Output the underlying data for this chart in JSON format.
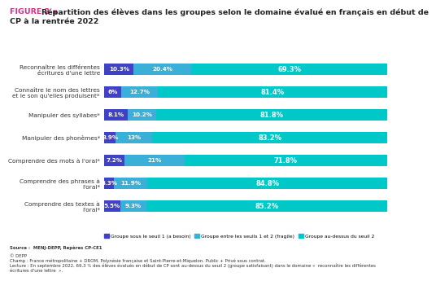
{
  "title_prefix": "FIGURE 2 ▪ ",
  "title_main": "Répartition des élèves dans les groupes selon le domaine évalué en français en début de CP à la rentrée 2022",
  "categories": [
    "Reconnaître les différentes\nécritures d'une lettre",
    "Connaître le nom des lettres\net le son qu'elles produisent*",
    "Manipuler des syllabes*",
    "Manipuler des phonèmes*",
    "Comprendre des mots à l'oral*",
    "Comprendre des phrases à\nl'oral*",
    "Comprendre des textes à\nl'oral*"
  ],
  "group1": [
    10.3,
    6.0,
    8.1,
    3.9,
    7.2,
    3.3,
    5.5
  ],
  "group2": [
    20.4,
    12.7,
    10.2,
    13.0,
    21.0,
    11.9,
    9.3
  ],
  "group3": [
    69.3,
    81.4,
    81.8,
    83.2,
    71.8,
    84.8,
    85.2
  ],
  "label1": [
    "10.3%",
    "6%",
    "8.1%",
    "3.9%",
    "7.2%",
    "3.3%",
    "5.5%"
  ],
  "label2": [
    "20.4%",
    "12.7%",
    "10.2%",
    "13%",
    "21%",
    "11.9%",
    "9.3%"
  ],
  "label3": [
    "69.3%",
    "81.4%",
    "81.8%",
    "83.2%",
    "71.8%",
    "84.8%",
    "85.2%"
  ],
  "color1": "#4040c8",
  "color2": "#3ab0d8",
  "color3": "#00c8c8",
  "legend1": "Groupe sous le seuil 1 (a besoin)",
  "legend2": "Groupe entre les seuils 1 et 2 (fragile)",
  "legend3": "Groupe au-dessus du seuil 2",
  "fig_label_color": "#d0308a",
  "source_bold": "Source :  MENJ-DEPP, Repères CP-CE1",
  "source_text": "© DEPP\nChamp : France métropolitaine + DROM, Polynésie française et Saint-Pierre-et-Miquelon. Public + Privé sous contrat.\nLecture : En septembre 2022, 69,3 % des élèves évalués en début de CP sont au-dessus du seuil 2 (groupe satisfaisant) dans le domaine «  reconnaître les différentes écritures d'une lettre  ».",
  "background_color": "#ffffff"
}
